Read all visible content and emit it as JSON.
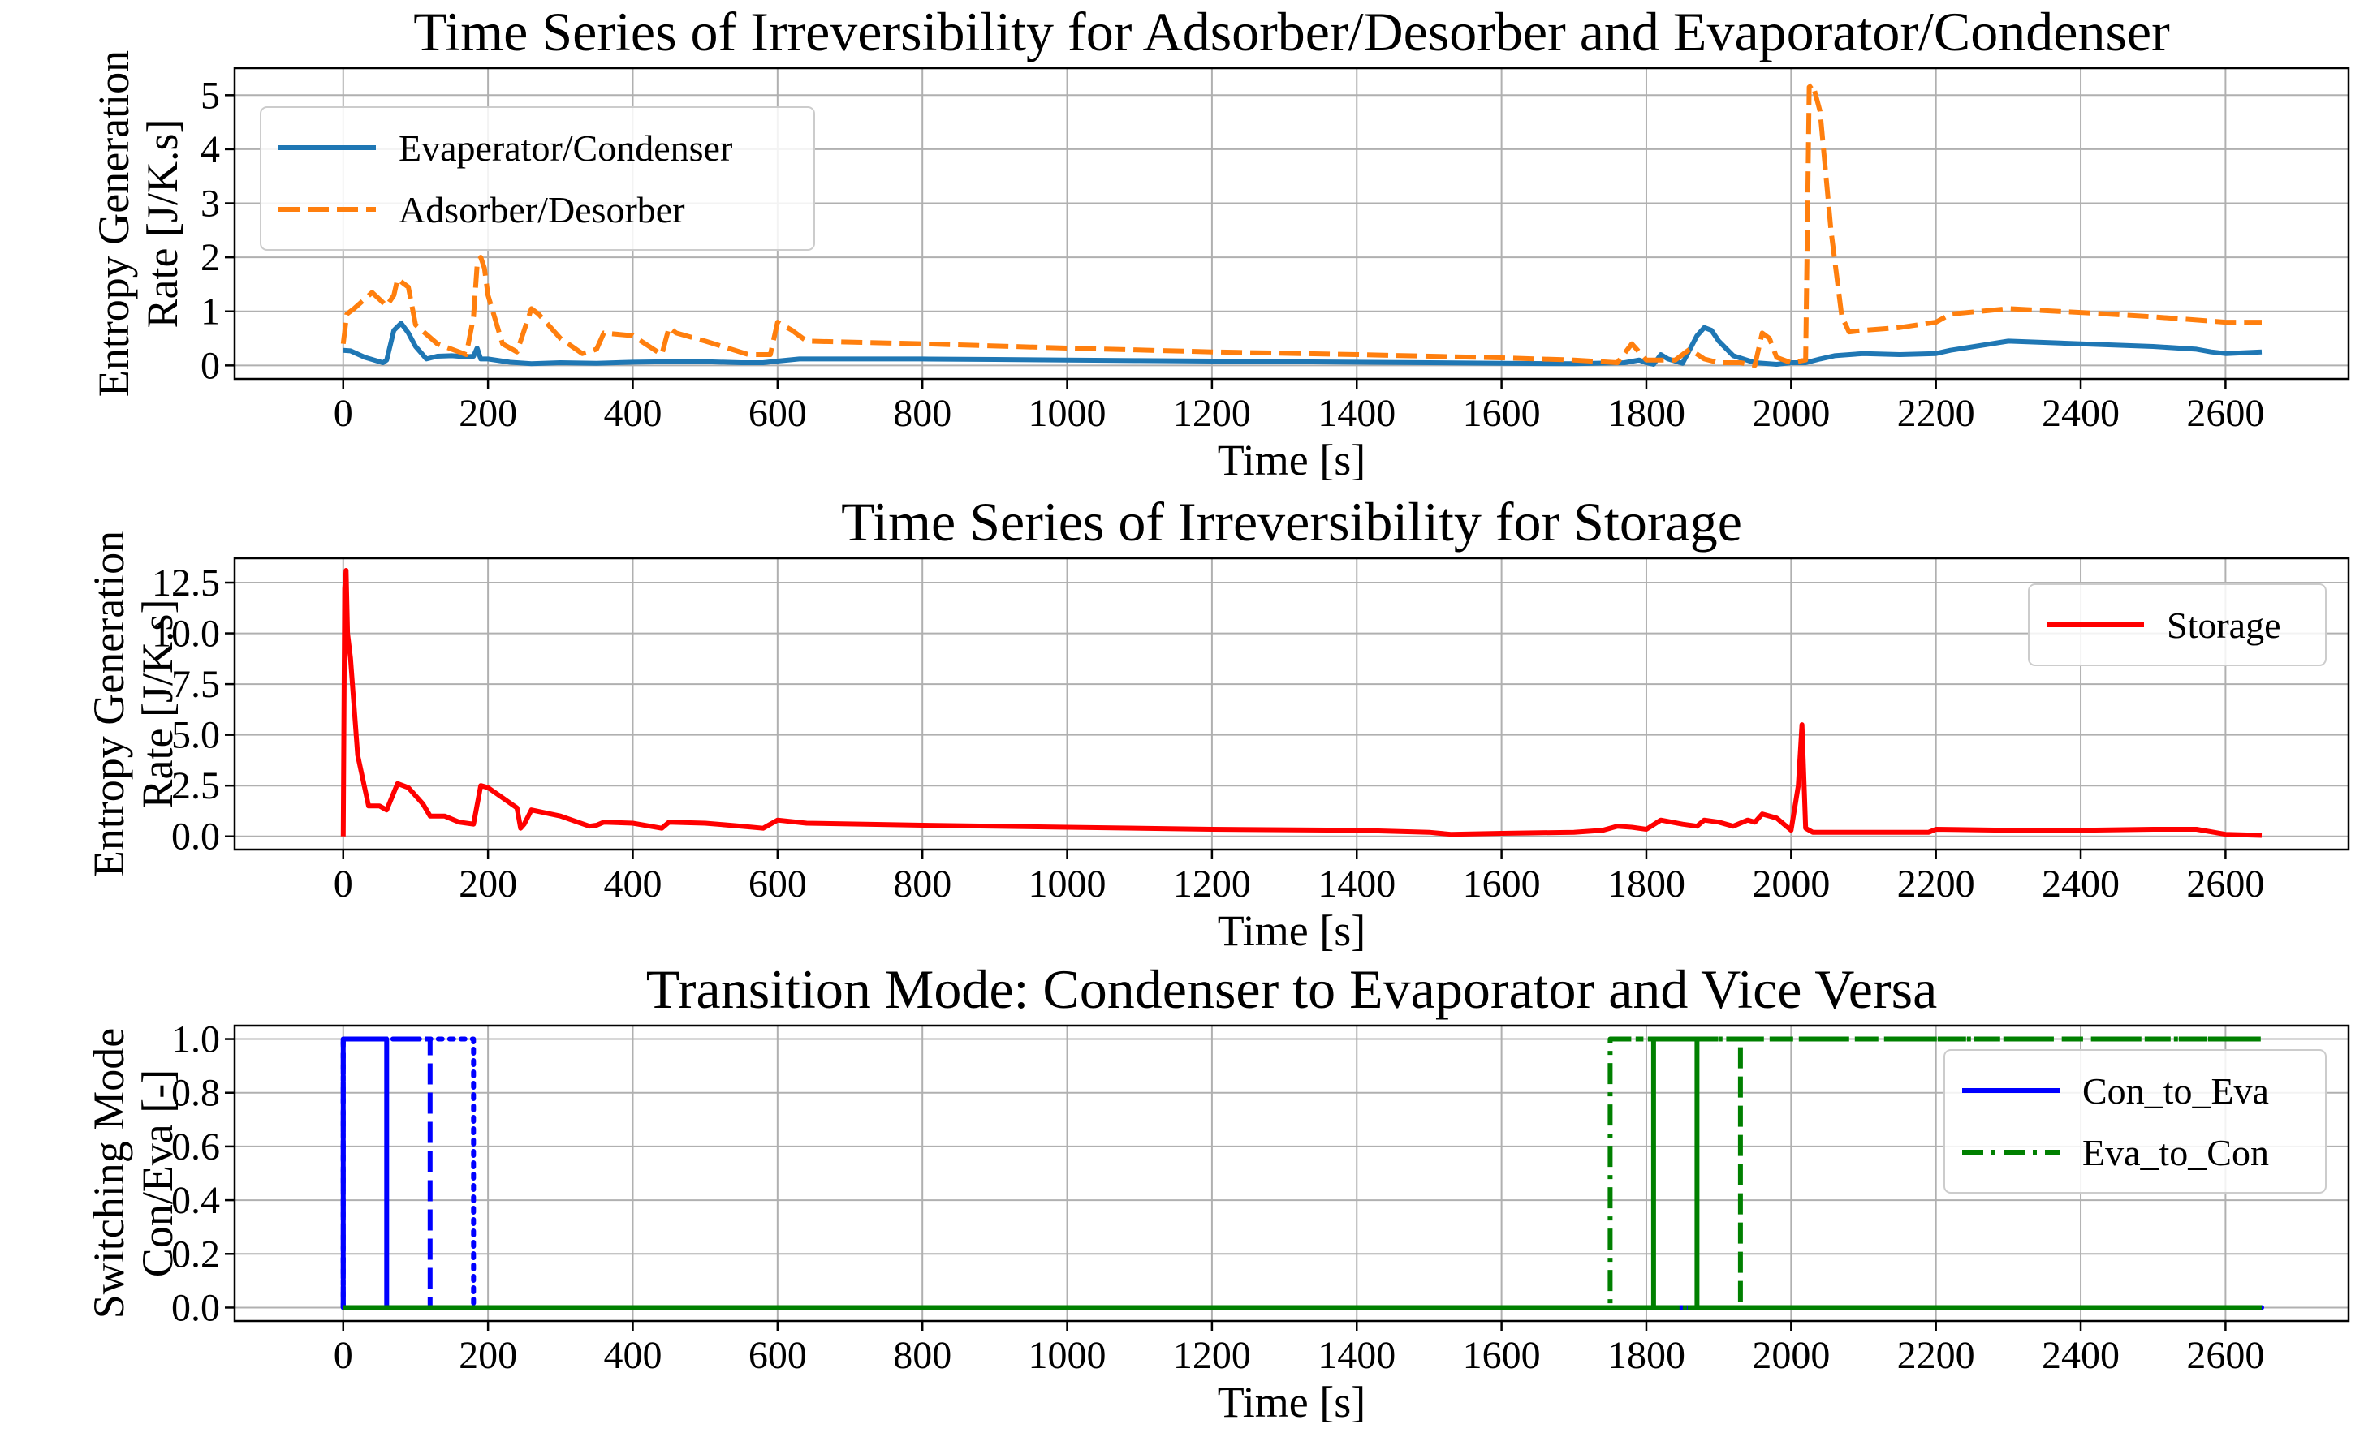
{
  "chart_data": [
    {
      "type": "line",
      "title": "Time Series of Irreversibility for Adsorber/Desorber and Evaporator/Condenser",
      "xlabel": "Time [s]",
      "ylabel": [
        "Entropy Generation",
        "Rate [J/K.s]"
      ],
      "xlim": [
        -150,
        2770
      ],
      "ylim": [
        -0.25,
        5.5
      ],
      "xticks": [
        0,
        200,
        400,
        600,
        800,
        1000,
        1200,
        1400,
        1600,
        1800,
        2000,
        2200,
        2400,
        2600
      ],
      "yticks": [
        0,
        1,
        2,
        3,
        4,
        5
      ],
      "ytick_labels": [
        "0",
        "1",
        "2",
        "3",
        "4",
        "5"
      ],
      "grid": true,
      "legend": "upper-left",
      "series": [
        {
          "name": "Evaperator/Condenser",
          "color": "#1f77b4",
          "style": "solid",
          "x": [
            0,
            10,
            30,
            55,
            60,
            70,
            80,
            90,
            100,
            115,
            130,
            150,
            170,
            180,
            185,
            190,
            200,
            230,
            260,
            300,
            350,
            400,
            450,
            500,
            550,
            580,
            600,
            630,
            700,
            800,
            900,
            1000,
            1100,
            1200,
            1300,
            1400,
            1500,
            1600,
            1700,
            1770,
            1790,
            1800,
            1810,
            1820,
            1830,
            1850,
            1870,
            1880,
            1890,
            1900,
            1920,
            1950,
            1980,
            2000,
            2020,
            2040,
            2060,
            2100,
            2150,
            2200,
            2220,
            2300,
            2400,
            2500,
            2560,
            2580,
            2600,
            2650
          ],
          "y": [
            0.28,
            0.27,
            0.15,
            0.05,
            0.1,
            0.65,
            0.78,
            0.6,
            0.35,
            0.12,
            0.17,
            0.18,
            0.16,
            0.17,
            0.32,
            0.12,
            0.12,
            0.06,
            0.03,
            0.05,
            0.04,
            0.06,
            0.07,
            0.07,
            0.05,
            0.05,
            0.08,
            0.12,
            0.12,
            0.12,
            0.11,
            0.1,
            0.09,
            0.08,
            0.07,
            0.06,
            0.05,
            0.04,
            0.03,
            0.05,
            0.1,
            0.05,
            0.02,
            0.2,
            0.12,
            0.04,
            0.55,
            0.7,
            0.65,
            0.45,
            0.18,
            0.05,
            0.02,
            0.05,
            0.05,
            0.12,
            0.18,
            0.22,
            0.2,
            0.22,
            0.28,
            0.45,
            0.4,
            0.35,
            0.3,
            0.25,
            0.22,
            0.25
          ]
        },
        {
          "name": "Adsorber/Desorber",
          "color": "#ff7f0e",
          "style": "dashed",
          "x": [
            0,
            5,
            15,
            40,
            60,
            70,
            75,
            90,
            100,
            130,
            170,
            180,
            185,
            190,
            195,
            200,
            220,
            240,
            260,
            270,
            300,
            330,
            350,
            360,
            400,
            440,
            450,
            460,
            500,
            560,
            590,
            600,
            620,
            640,
            800,
            1000,
            1200,
            1400,
            1600,
            1700,
            1760,
            1780,
            1800,
            1840,
            1860,
            1880,
            1900,
            1930,
            1950,
            1960,
            1970,
            1980,
            2000,
            2020,
            2025,
            2030,
            2040,
            2055,
            2070,
            2080,
            2100,
            2150,
            2200,
            2220,
            2300,
            2400,
            2500,
            2600,
            2650
          ],
          "y": [
            0.4,
            0.95,
            1.05,
            1.35,
            1.1,
            1.3,
            1.6,
            1.45,
            0.75,
            0.4,
            0.2,
            0.9,
            1.85,
            2.0,
            1.8,
            1.3,
            0.4,
            0.25,
            1.05,
            0.95,
            0.5,
            0.22,
            0.3,
            0.6,
            0.55,
            0.2,
            0.7,
            0.6,
            0.45,
            0.2,
            0.2,
            0.8,
            0.65,
            0.45,
            0.4,
            0.32,
            0.25,
            0.2,
            0.14,
            0.1,
            0.05,
            0.4,
            0.1,
            0.1,
            0.3,
            0.12,
            0.05,
            0.05,
            0.0,
            0.6,
            0.5,
            0.15,
            0.05,
            0.1,
            5.15,
            5.2,
            4.7,
            2.5,
            0.9,
            0.62,
            0.65,
            0.7,
            0.8,
            0.95,
            1.05,
            0.98,
            0.9,
            0.8,
            0.8
          ]
        }
      ]
    },
    {
      "type": "line",
      "title": "Time Series of Irreversibility for Storage",
      "xlabel": "Time [s]",
      "ylabel": [
        "Entropy Generation",
        "Rate [J/K.s]"
      ],
      "xlim": [
        -150,
        2770
      ],
      "ylim": [
        -0.65,
        13.7
      ],
      "xticks": [
        0,
        200,
        400,
        600,
        800,
        1000,
        1200,
        1400,
        1600,
        1800,
        2000,
        2200,
        2400,
        2600
      ],
      "yticks": [
        0.0,
        2.5,
        5.0,
        7.5,
        10.0,
        12.5
      ],
      "ytick_labels": [
        "0.0",
        "2.5",
        "5.0",
        "7.5",
        "10.0",
        "12.5"
      ],
      "grid": true,
      "legend": "upper-right",
      "series": [
        {
          "name": "Storage",
          "color": "#ff0000",
          "style": "solid",
          "x": [
            0,
            2,
            4,
            6,
            10,
            20,
            35,
            50,
            60,
            75,
            90,
            110,
            120,
            140,
            160,
            180,
            190,
            200,
            220,
            240,
            245,
            250,
            260,
            300,
            340,
            350,
            360,
            400,
            440,
            450,
            500,
            550,
            580,
            600,
            640,
            800,
            1000,
            1200,
            1400,
            1500,
            1530,
            1600,
            1700,
            1740,
            1760,
            1780,
            1800,
            1820,
            1850,
            1870,
            1880,
            1900,
            1920,
            1940,
            1950,
            1960,
            1980,
            2000,
            2010,
            2015,
            2020,
            2030,
            2100,
            2190,
            2200,
            2300,
            2400,
            2500,
            2560,
            2600,
            2650
          ],
          "y": [
            0.0,
            12.2,
            13.1,
            10.0,
            8.8,
            4.0,
            1.5,
            1.5,
            1.3,
            2.6,
            2.4,
            1.6,
            1.0,
            1.0,
            0.7,
            0.6,
            2.5,
            2.4,
            1.9,
            1.4,
            0.4,
            0.6,
            1.3,
            1.0,
            0.5,
            0.55,
            0.7,
            0.65,
            0.4,
            0.7,
            0.65,
            0.5,
            0.4,
            0.8,
            0.65,
            0.55,
            0.45,
            0.35,
            0.3,
            0.2,
            0.1,
            0.15,
            0.2,
            0.3,
            0.5,
            0.45,
            0.35,
            0.8,
            0.6,
            0.5,
            0.8,
            0.7,
            0.5,
            0.8,
            0.7,
            1.1,
            0.9,
            0.3,
            2.5,
            5.5,
            0.4,
            0.2,
            0.2,
            0.2,
            0.35,
            0.3,
            0.3,
            0.35,
            0.35,
            0.1,
            0.05
          ]
        }
      ]
    },
    {
      "type": "line",
      "title": "Transition Mode: Condenser to Evaporator and Vice Versa",
      "xlabel": "Time [s]",
      "ylabel": [
        "Switching Mode",
        "Con/Eva [-]"
      ],
      "xlim": [
        -150,
        2770
      ],
      "ylim": [
        -0.05,
        1.05
      ],
      "xticks": [
        0,
        200,
        400,
        600,
        800,
        1000,
        1200,
        1400,
        1600,
        1800,
        2000,
        2200,
        2400,
        2600
      ],
      "yticks": [
        0.0,
        0.2,
        0.4,
        0.6,
        0.8,
        1.0
      ],
      "ytick_labels": [
        "0.0",
        "0.2",
        "0.4",
        "0.6",
        "0.8",
        "1.0"
      ],
      "grid": true,
      "legend": "upper-right",
      "legend_entries": [
        {
          "name": "Con_to_Eva",
          "color": "#0000ff",
          "style": "solid"
        },
        {
          "name": "Eva_to_Con",
          "color": "#008000",
          "style": "dashdot"
        }
      ],
      "series": [
        {
          "name": "Con_to_Eva",
          "color": "#0000ff",
          "style": "solid",
          "x": [
            0,
            0,
            60,
            60,
            2650
          ],
          "y": [
            0,
            1,
            1,
            0,
            0
          ]
        },
        {
          "name": "Con_to_Eva (2)",
          "color": "#0000ff",
          "style": "dashed",
          "x": [
            0,
            0,
            120,
            120,
            2650
          ],
          "y": [
            0,
            1,
            1,
            0,
            0
          ]
        },
        {
          "name": "Con_to_Eva (3)",
          "color": "#0000ff",
          "style": "dotted",
          "x": [
            0,
            0,
            180,
            180,
            2650
          ],
          "y": [
            0,
            1,
            1,
            0,
            0
          ]
        },
        {
          "name": "Eva_to_Con",
          "color": "#008000",
          "style": "dashdot",
          "x": [
            0,
            1750,
            1750,
            2650
          ],
          "y": [
            0,
            0,
            1,
            1
          ]
        },
        {
          "name": "Eva_to_Con (2)",
          "color": "#008000",
          "style": "solid",
          "x": [
            0,
            1810,
            1810,
            1870,
            1870,
            2650
          ],
          "y": [
            0,
            0,
            1,
            1,
            0,
            0
          ]
        },
        {
          "name": "Eva_to_Con (3)",
          "color": "#008000",
          "style": "dashed",
          "x": [
            0,
            1930,
            1930,
            2650
          ],
          "y": [
            0,
            0,
            1,
            1
          ]
        },
        {
          "name": "Eva_to_Con (4)",
          "color": "#008000",
          "style": "dashdot",
          "x": [
            1750,
            1810
          ],
          "y": [
            1,
            1
          ]
        },
        {
          "name": "Eva_to_Con (5)",
          "color": "#008000",
          "style": "dashed",
          "x": [
            1870,
            1930
          ],
          "y": [
            1,
            1
          ]
        },
        {
          "name": "Eva_to_Con (6)",
          "color": "#008000",
          "style": "dashdot",
          "x": [
            1810,
            2650
          ],
          "y": [
            0,
            0
          ]
        }
      ]
    }
  ]
}
